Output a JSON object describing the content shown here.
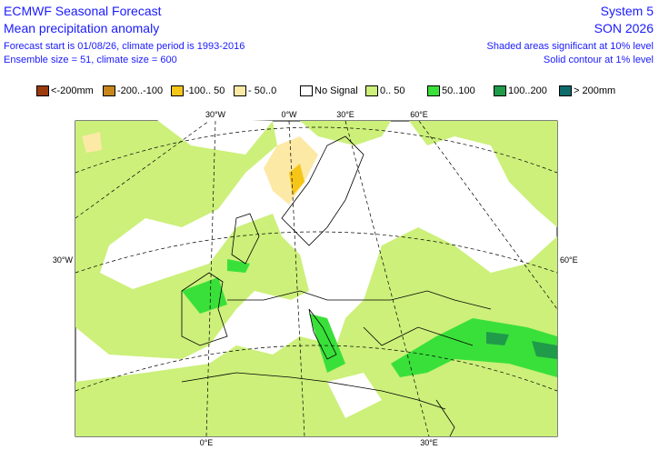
{
  "header": {
    "left": [
      "ECMWF Seasonal Forecast",
      "Mean precipitation anomaly",
      "Forecast start is 01/08/26, climate period is 1993-2016",
      "Ensemble size = 51, climate size = 600"
    ],
    "right": [
      "System 5",
      "SON 2026",
      "Shaded areas significant at 10% level",
      "Solid contour at 1% level"
    ]
  },
  "legend": [
    {
      "label": "<-200mm",
      "color": "#9b3a0c"
    },
    {
      "label": "-200..-100",
      "color": "#c8861a"
    },
    {
      "label": "-100.. 50",
      "color": "#f5c518"
    },
    {
      "label": "- 50..0",
      "color": "#fde9a6"
    },
    {
      "label": "No Signal",
      "color": "#ffffff"
    },
    {
      "label": "0.. 50",
      "color": "#ccf07a"
    },
    {
      "label": "50..100",
      "color": "#3ae03a"
    },
    {
      "label": "100..200",
      "color": "#1f9b4a"
    },
    {
      "label": "> 200mm",
      "color": "#0e6b6b"
    }
  ],
  "map": {
    "graticule_labels": [
      "30°W",
      "0°W",
      "30°E",
      "60°E",
      "30°W",
      "60°E",
      "0°E",
      "30°E"
    ]
  }
}
